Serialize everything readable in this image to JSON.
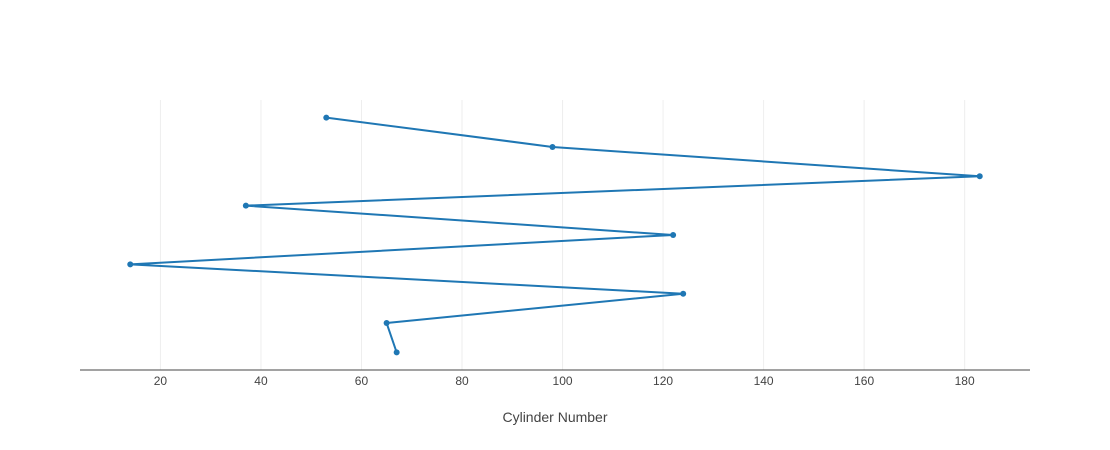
{
  "chart_data": {
    "type": "line",
    "title": "",
    "xlabel": "Cylinder Number",
    "ylabel": "",
    "xlim": [
      4,
      193
    ],
    "ylim": [
      -0.6,
      8.6
    ],
    "x_ticks": [
      20,
      40,
      60,
      80,
      100,
      120,
      140,
      160,
      180
    ],
    "show_y_axis": false,
    "grid": "vertical",
    "legend": "none",
    "series": [
      {
        "x": [
          53,
          98,
          183,
          37,
          122,
          14,
          124,
          65,
          67
        ],
        "y": [
          8,
          7,
          6,
          5,
          4,
          3,
          2,
          1,
          0
        ],
        "mode": "lines+markers",
        "color": "#1f77b4"
      }
    ],
    "colors": {
      "grid": "#eeeeee",
      "axis": "#444444",
      "text": "#444444"
    }
  }
}
